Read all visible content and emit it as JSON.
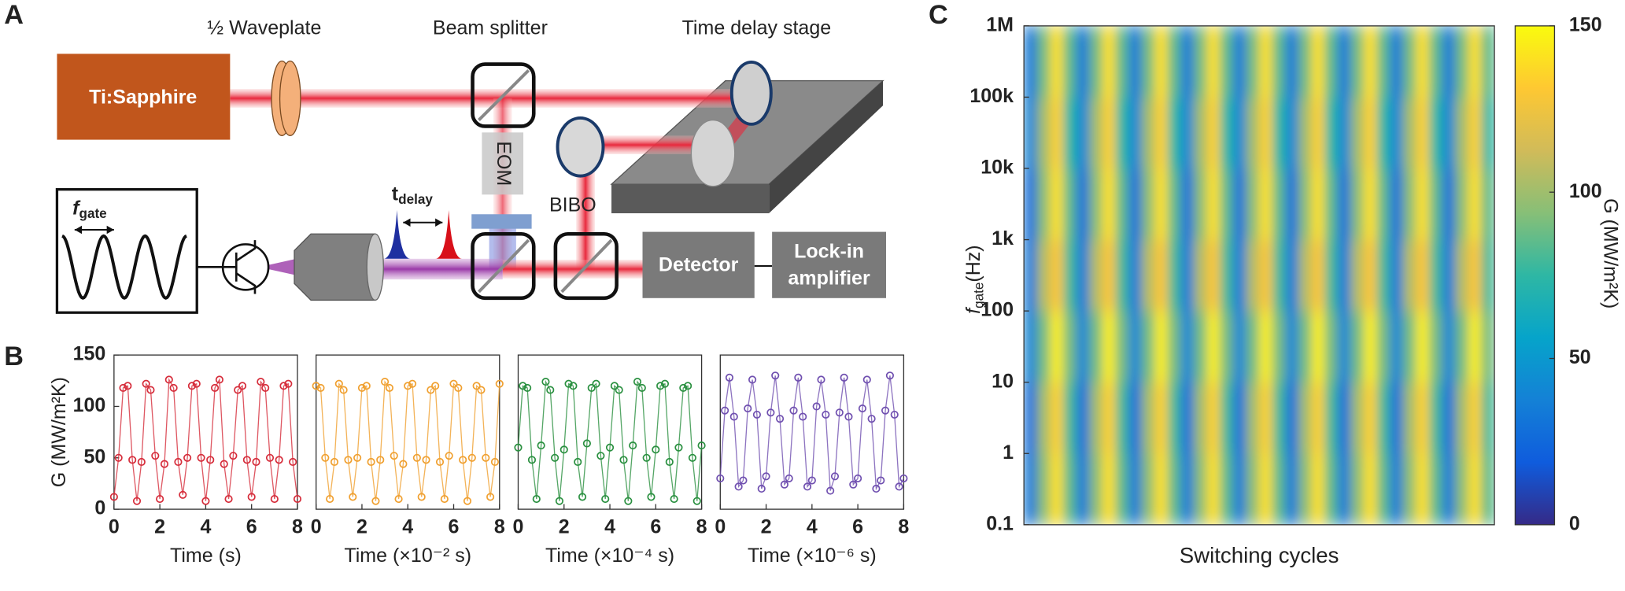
{
  "diagram": {
    "panel_label": "A",
    "waveplate": "½ Waveplate",
    "beam_splitter": "Beam splitter",
    "delay_stage": "Time delay stage",
    "laser": "Ti:Sapphire",
    "eom": "EOM",
    "bibo": "BIBO",
    "t_delay": "t",
    "t_delay_sub": "delay",
    "f_gate": "f",
    "f_gate_sub": "gate",
    "detector": "Detector",
    "lockin": [
      "Lock-in",
      "amplifier"
    ]
  },
  "chart_data": [
    {
      "type": "line",
      "markers": true,
      "panel_label": "B",
      "ylabel": "G (MW/m²K)",
      "xlabel": "Time (s)",
      "color": "#d62d3b",
      "x": [
        0,
        0.2,
        0.4,
        0.6,
        0.8,
        1,
        1.2,
        1.4,
        1.6,
        1.8,
        2,
        2.2,
        2.4,
        2.6,
        2.8,
        3,
        3.2,
        3.4,
        3.6,
        3.8,
        4,
        4.2,
        4.4,
        4.6,
        4.8,
        5,
        5.2,
        5.4,
        5.6,
        5.8,
        6,
        6.2,
        6.4,
        6.6,
        6.8,
        7,
        7.2,
        7.4,
        7.6,
        7.8,
        8
      ],
      "values": [
        12,
        50,
        118,
        120,
        48,
        8,
        46,
        122,
        116,
        52,
        10,
        44,
        126,
        118,
        46,
        14,
        50,
        120,
        122,
        50,
        8,
        48,
        118,
        126,
        44,
        10,
        52,
        116,
        120,
        48,
        12,
        46,
        124,
        118,
        50,
        10,
        48,
        120,
        122,
        46,
        10
      ],
      "xlim": [
        0,
        8
      ],
      "xticks": [
        0,
        2,
        4,
        6,
        8
      ],
      "ylim": [
        0,
        150
      ],
      "yticks": [
        0,
        50,
        100,
        150
      ]
    },
    {
      "type": "line",
      "markers": true,
      "xlabel": "Time (×10⁻² s)",
      "color": "#f0a030",
      "x": [
        0,
        0.2,
        0.4,
        0.6,
        0.8,
        1,
        1.2,
        1.4,
        1.6,
        1.8,
        2,
        2.2,
        2.4,
        2.6,
        2.8,
        3,
        3.2,
        3.4,
        3.6,
        3.8,
        4,
        4.2,
        4.4,
        4.6,
        4.8,
        5,
        5.2,
        5.4,
        5.6,
        5.8,
        6,
        6.2,
        6.4,
        6.6,
        6.8,
        7,
        7.2,
        7.4,
        7.6,
        7.8,
        8
      ],
      "values": [
        120,
        118,
        50,
        10,
        46,
        122,
        116,
        48,
        12,
        50,
        118,
        120,
        46,
        8,
        48,
        124,
        118,
        52,
        10,
        44,
        120,
        122,
        50,
        12,
        48,
        116,
        120,
        46,
        10,
        52,
        122,
        118,
        48,
        8,
        50,
        120,
        116,
        50,
        12,
        46,
        122
      ],
      "xlim": [
        0,
        8
      ],
      "xticks": [
        0,
        2,
        4,
        6,
        8
      ],
      "ylim": [
        0,
        150
      ]
    },
    {
      "type": "line",
      "markers": true,
      "xlabel": "Time (×10⁻⁴ s)",
      "color": "#2a9040",
      "x": [
        0,
        0.2,
        0.4,
        0.6,
        0.8,
        1,
        1.2,
        1.4,
        1.6,
        1.8,
        2,
        2.2,
        2.4,
        2.6,
        2.8,
        3,
        3.2,
        3.4,
        3.6,
        3.8,
        4,
        4.2,
        4.4,
        4.6,
        4.8,
        5,
        5.2,
        5.4,
        5.6,
        5.8,
        6,
        6.2,
        6.4,
        6.6,
        6.8,
        7,
        7.2,
        7.4,
        7.6,
        7.8,
        8
      ],
      "values": [
        60,
        120,
        118,
        48,
        10,
        62,
        124,
        116,
        50,
        8,
        58,
        122,
        120,
        46,
        12,
        64,
        118,
        122,
        52,
        10,
        60,
        120,
        116,
        48,
        8,
        62,
        124,
        118,
        50,
        12,
        58,
        120,
        122,
        46,
        10,
        60,
        118,
        120,
        50,
        8,
        62
      ],
      "xlim": [
        0,
        8
      ],
      "xticks": [
        0,
        2,
        4,
        6,
        8
      ],
      "ylim": [
        0,
        150
      ]
    },
    {
      "type": "line",
      "markers": true,
      "xlabel": "Time (×10⁻⁶ s)",
      "color": "#7050b0",
      "x": [
        0,
        0.2,
        0.4,
        0.6,
        0.8,
        1,
        1.2,
        1.4,
        1.6,
        1.8,
        2,
        2.2,
        2.4,
        2.6,
        2.8,
        3,
        3.2,
        3.4,
        3.6,
        3.8,
        4,
        4.2,
        4.4,
        4.6,
        4.8,
        5,
        5.2,
        5.4,
        5.6,
        5.8,
        6,
        6.2,
        6.4,
        6.6,
        6.8,
        7,
        7.2,
        7.4,
        7.6,
        7.8,
        8
      ],
      "values": [
        30,
        96,
        128,
        90,
        22,
        28,
        98,
        126,
        92,
        20,
        32,
        94,
        130,
        88,
        24,
        30,
        96,
        128,
        90,
        22,
        28,
        100,
        126,
        92,
        18,
        32,
        94,
        128,
        90,
        24,
        30,
        98,
        126,
        88,
        20,
        28,
        96,
        130,
        92,
        22,
        30
      ],
      "xlim": [
        0,
        8
      ],
      "xticks": [
        0,
        2,
        4,
        6,
        8
      ],
      "ylim": [
        0,
        150
      ]
    },
    {
      "type": "heatmap",
      "panel_label": "C",
      "xlabel": "Switching cycles",
      "ylabel": "f",
      "ylabel_sub": "gate",
      "ylabel_unit": "(Hz)",
      "colorbar_label": "G (MW/m²K)",
      "clim": [
        0,
        150
      ],
      "cticks": [
        0,
        50,
        100,
        150
      ],
      "log_y": true,
      "ylim": [
        0.1,
        1000000
      ],
      "yticks": [
        0.1,
        1,
        10,
        100,
        {
          "value": 1000,
          "label": "1k"
        },
        {
          "value": 10000,
          "label": "10k"
        },
        {
          "value": 100000,
          "label": "100k"
        },
        {
          "value": 1000000,
          "label": "1M"
        }
      ],
      "colormap": [
        "#352a87",
        "#0f5cdd",
        "#1481d6",
        "#06a4ca",
        "#2eb7a4",
        "#87bf77",
        "#d1bb59",
        "#fec832",
        "#f9fb0e"
      ],
      "z": [
        [
          35,
          95,
          140,
          85,
          35,
          95,
          140,
          85,
          35,
          95,
          140,
          85,
          35,
          95,
          140,
          85,
          35,
          95,
          140,
          85,
          35,
          95,
          140,
          85,
          35,
          95,
          140,
          85,
          35,
          95,
          140,
          85,
          35,
          95,
          140,
          85
        ],
        [
          30,
          100,
          135,
          80,
          30,
          100,
          135,
          80,
          30,
          100,
          135,
          80,
          30,
          100,
          135,
          80,
          30,
          100,
          135,
          80,
          30,
          100,
          135,
          80,
          30,
          100,
          135,
          80,
          30,
          100,
          135,
          80,
          30,
          100,
          135,
          80
        ],
        [
          40,
          90,
          145,
          90,
          40,
          90,
          145,
          90,
          40,
          90,
          145,
          90,
          40,
          90,
          145,
          90,
          40,
          90,
          145,
          90,
          40,
          90,
          145,
          90,
          40,
          90,
          145,
          90,
          40,
          90,
          145,
          90,
          40,
          90,
          145,
          90
        ],
        [
          35,
          105,
          130,
          80,
          35,
          105,
          130,
          80,
          35,
          105,
          130,
          80,
          35,
          105,
          130,
          80,
          35,
          105,
          130,
          80,
          35,
          105,
          130,
          80,
          35,
          105,
          130,
          80,
          35,
          105,
          130,
          80,
          35,
          105,
          130,
          80
        ],
        [
          30,
          95,
          140,
          85,
          30,
          95,
          140,
          85,
          30,
          95,
          140,
          85,
          30,
          95,
          140,
          85,
          30,
          95,
          140,
          85,
          30,
          95,
          140,
          85,
          30,
          95,
          140,
          85,
          30,
          95,
          140,
          85,
          30,
          95,
          140,
          85
        ],
        [
          40,
          100,
          135,
          75,
          40,
          100,
          135,
          75,
          40,
          100,
          135,
          75,
          40,
          100,
          135,
          75,
          40,
          100,
          135,
          75,
          40,
          100,
          135,
          75,
          40,
          100,
          135,
          75,
          40,
          100,
          135,
          75,
          40,
          100,
          135,
          75
        ],
        [
          35,
          90,
          140,
          85,
          35,
          90,
          140,
          85,
          35,
          90,
          140,
          85,
          35,
          90,
          140,
          85,
          35,
          90,
          140,
          85,
          35,
          90,
          140,
          85,
          35,
          90,
          140,
          85,
          35,
          90,
          140,
          85,
          35,
          90,
          140,
          85
        ]
      ]
    }
  ]
}
